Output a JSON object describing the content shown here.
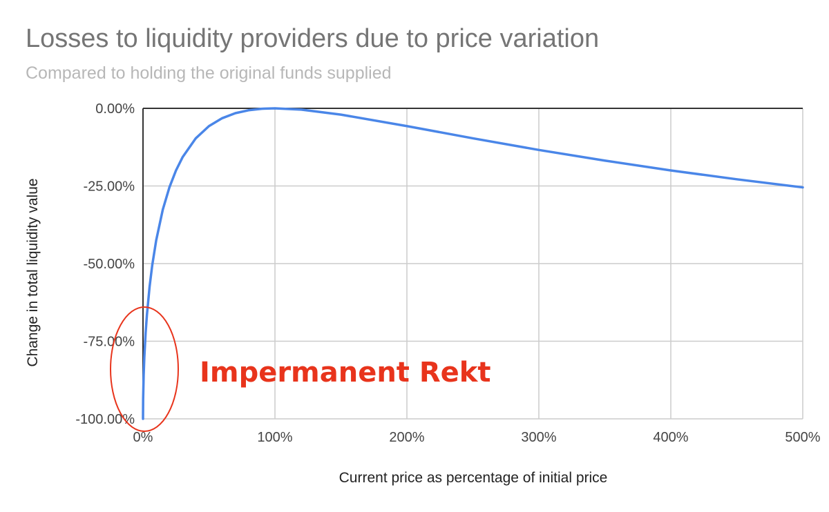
{
  "chart_data": {
    "type": "line",
    "title": "Losses to liquidity providers due to price variation",
    "subtitle": "Compared to holding the original funds supplied",
    "xlabel": "Current price as percentage of initial price",
    "ylabel": "Change in total liquidity value",
    "x_ticks": [
      "0%",
      "100%",
      "200%",
      "300%",
      "400%",
      "500%"
    ],
    "y_ticks": [
      "0.00%",
      "-25.00%",
      "-50.00%",
      "-75.00%",
      "-100.00%"
    ],
    "xlim": [
      0,
      500
    ],
    "ylim": [
      -100,
      0
    ],
    "grid": true,
    "colors": {
      "series": "#4a86e8",
      "annotation": "#e8341c",
      "grid": "#cccccc"
    },
    "series": [
      {
        "x": [
          0,
          0.1,
          0.5,
          1,
          2,
          3,
          5,
          7,
          10,
          15,
          20,
          25,
          30,
          40,
          50,
          60,
          70,
          80,
          90,
          100,
          120,
          150,
          200,
          250,
          300,
          350,
          400,
          450,
          500
        ],
        "y": [
          -100,
          -93.68,
          -85.93,
          -80.2,
          -72.27,
          -66.37,
          -57.41,
          -50.52,
          -42.5,
          -32.62,
          -25.46,
          -20.0,
          -15.73,
          -9.65,
          -5.72,
          -3.18,
          -1.56,
          -0.62,
          -0.14,
          0,
          -0.41,
          -2.02,
          -5.72,
          -9.65,
          -13.4,
          -16.83,
          -20.0,
          -22.85,
          -25.46
        ]
      }
    ],
    "annotations": [
      {
        "text": "Impermanent Rekt"
      }
    ]
  }
}
